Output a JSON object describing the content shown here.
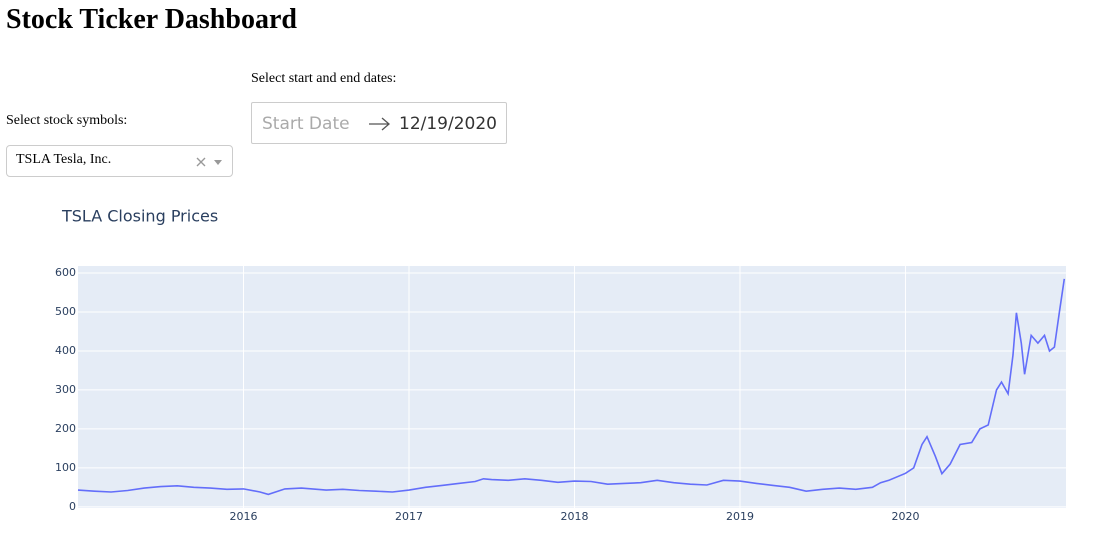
{
  "header": {
    "title": "Stock Ticker Dashboard"
  },
  "controls": {
    "symbols": {
      "label": "Select stock symbols:",
      "selected": "TSLA Tesla, Inc."
    },
    "dates": {
      "label": "Select start and end dates:",
      "start_placeholder": "Start Date",
      "end": "12/19/2020"
    }
  },
  "chart_data": {
    "type": "line",
    "title": "TSLA Closing Prices",
    "color": "#636efa",
    "grid": true,
    "x": [
      2015.0,
      2015.1,
      2015.2,
      2015.3,
      2015.4,
      2015.5,
      2015.6,
      2015.7,
      2015.8,
      2015.9,
      2016.0,
      2016.1,
      2016.15,
      2016.25,
      2016.35,
      2016.5,
      2016.6,
      2016.7,
      2016.8,
      2016.9,
      2017.0,
      2017.1,
      2017.2,
      2017.3,
      2017.4,
      2017.45,
      2017.5,
      2017.6,
      2017.7,
      2017.8,
      2017.9,
      2018.0,
      2018.1,
      2018.2,
      2018.3,
      2018.4,
      2018.5,
      2018.6,
      2018.7,
      2018.8,
      2018.9,
      2019.0,
      2019.1,
      2019.2,
      2019.3,
      2019.4,
      2019.5,
      2019.6,
      2019.7,
      2019.8,
      2019.85,
      2019.9,
      2020.0,
      2020.05,
      2020.1,
      2020.13,
      2020.18,
      2020.22,
      2020.27,
      2020.33,
      2020.4,
      2020.45,
      2020.5,
      2020.55,
      2020.58,
      2020.62,
      2020.65,
      2020.67,
      2020.7,
      2020.72,
      2020.76,
      2020.8,
      2020.84,
      2020.87,
      2020.9,
      2020.93,
      2020.96
    ],
    "values": [
      43,
      40,
      38,
      42,
      48,
      52,
      54,
      50,
      48,
      45,
      46,
      38,
      32,
      46,
      48,
      43,
      45,
      42,
      40,
      38,
      43,
      50,
      55,
      60,
      65,
      72,
      70,
      68,
      72,
      68,
      63,
      66,
      65,
      58,
      60,
      62,
      68,
      62,
      58,
      56,
      68,
      66,
      60,
      55,
      50,
      40,
      45,
      48,
      45,
      50,
      62,
      68,
      86,
      100,
      160,
      180,
      130,
      85,
      110,
      160,
      165,
      200,
      210,
      300,
      320,
      290,
      390,
      498,
      420,
      340,
      440,
      420,
      440,
      400,
      410,
      500,
      585
    ],
    "xlim": [
      2015.0,
      2020.97
    ],
    "xticks": [
      2016,
      2017,
      2018,
      2019,
      2020
    ],
    "ylim": [
      -3,
      618
    ],
    "yticks": [
      0,
      100,
      200,
      300,
      400,
      500,
      600
    ]
  }
}
